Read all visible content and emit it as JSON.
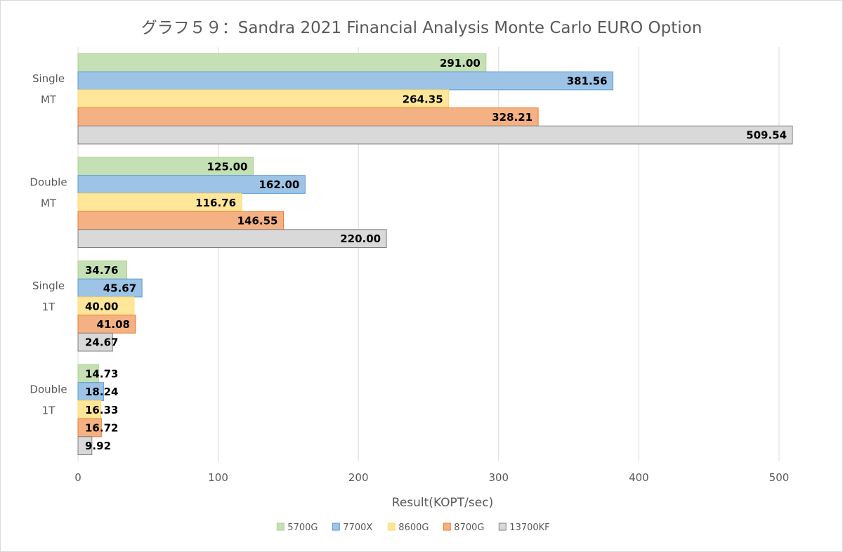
{
  "chart_data": {
    "type": "bar",
    "orientation": "horizontal",
    "title": "グラフ５９：Sandra 2021 Financial Analysis Monte Carlo EURO Option",
    "xlabel": "Result(KOPT/sec)",
    "ylabel": "",
    "xlim": [
      0,
      500
    ],
    "xticks": [
      0,
      100,
      200,
      300,
      400,
      500
    ],
    "grid": true,
    "legend_position": "bottom",
    "categories": [
      [
        "Single",
        "MT"
      ],
      [
        "Double",
        "MT"
      ],
      [
        "Single",
        "1T"
      ],
      [
        "Double",
        "1T"
      ]
    ],
    "series": [
      {
        "name": "5700G",
        "color": "#c5e0b4",
        "border": "#a9d18e",
        "values": [
          291.0,
          125.0,
          34.76,
          14.73
        ],
        "labels": [
          "291.00",
          "125.00",
          "34.76",
          "14.73"
        ]
      },
      {
        "name": "7700X",
        "color": "#9dc3e6",
        "border": "#5b9bd5",
        "values": [
          381.56,
          162.0,
          45.67,
          18.24
        ],
        "labels": [
          "381.56",
          "162.00",
          "45.67",
          "18.24"
        ]
      },
      {
        "name": "8600G",
        "color": "#ffe699",
        "border": "#ffd966",
        "values": [
          264.35,
          116.76,
          40.0,
          16.33
        ],
        "labels": [
          "264.35",
          "116.76",
          "40.00",
          "16.33"
        ]
      },
      {
        "name": "8700G",
        "color": "#f4b183",
        "border": "#ed7d31",
        "values": [
          328.21,
          146.55,
          41.08,
          16.72
        ],
        "labels": [
          "328.21",
          "146.55",
          "41.08",
          "16.72"
        ]
      },
      {
        "name": "13700KF",
        "color": "#d9d9d9",
        "border": "#808080",
        "values": [
          509.54,
          220.0,
          24.67,
          9.92
        ],
        "labels": [
          "509.54",
          "220.00",
          "24.67",
          "9.92"
        ]
      }
    ]
  }
}
